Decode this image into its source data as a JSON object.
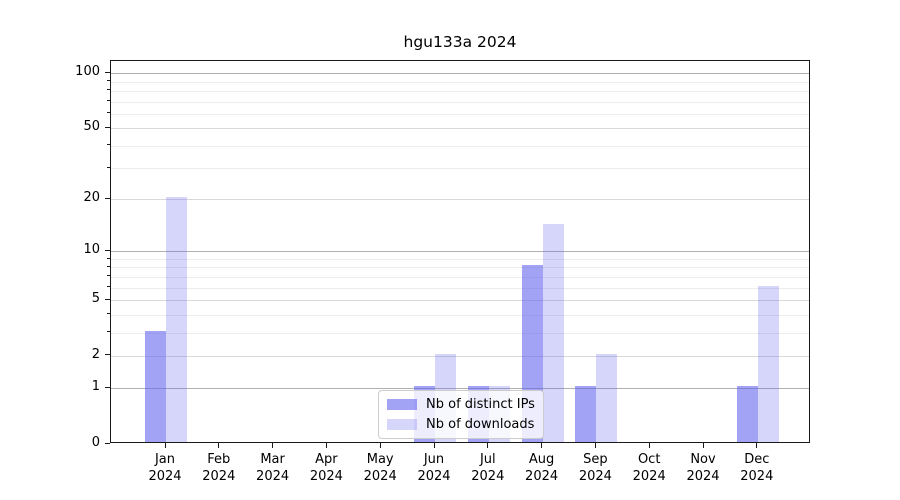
{
  "chart_data": {
    "type": "bar",
    "title": "hgu133a 2024",
    "x_labels": [
      "Jan",
      "Feb",
      "Mar",
      "Apr",
      "May",
      "Jun",
      "Jul",
      "Aug",
      "Sep",
      "Oct",
      "Nov",
      "Dec"
    ],
    "x_year": "2024",
    "series": [
      {
        "name": "Nb of distinct IPs",
        "color": "rgba(102,102,238,0.6)",
        "values": [
          3,
          0,
          0,
          0,
          0,
          1,
          1,
          8,
          1,
          0,
          0,
          1
        ]
      },
      {
        "name": "Nb of downloads",
        "color": "rgba(102,102,238,0.27)",
        "values": [
          20,
          0,
          0,
          0,
          0,
          2,
          1,
          14,
          2,
          0,
          0,
          6
        ]
      }
    ],
    "y_ticks": [
      0,
      1,
      2,
      5,
      10,
      20,
      50,
      100
    ],
    "y_minor_ticks": [
      3,
      4,
      6,
      7,
      8,
      9,
      30,
      40,
      60,
      70,
      80,
      90
    ],
    "y_scale": "log1p",
    "y_max": 116.6,
    "grid": true,
    "legend_position": "lower center"
  },
  "colors": {
    "background": "#ffffff",
    "axis": "#1a1a1a",
    "grid_decade": "#b0b0b0",
    "grid_major": "#d9d9d9",
    "grid_minor": "#ececec"
  }
}
